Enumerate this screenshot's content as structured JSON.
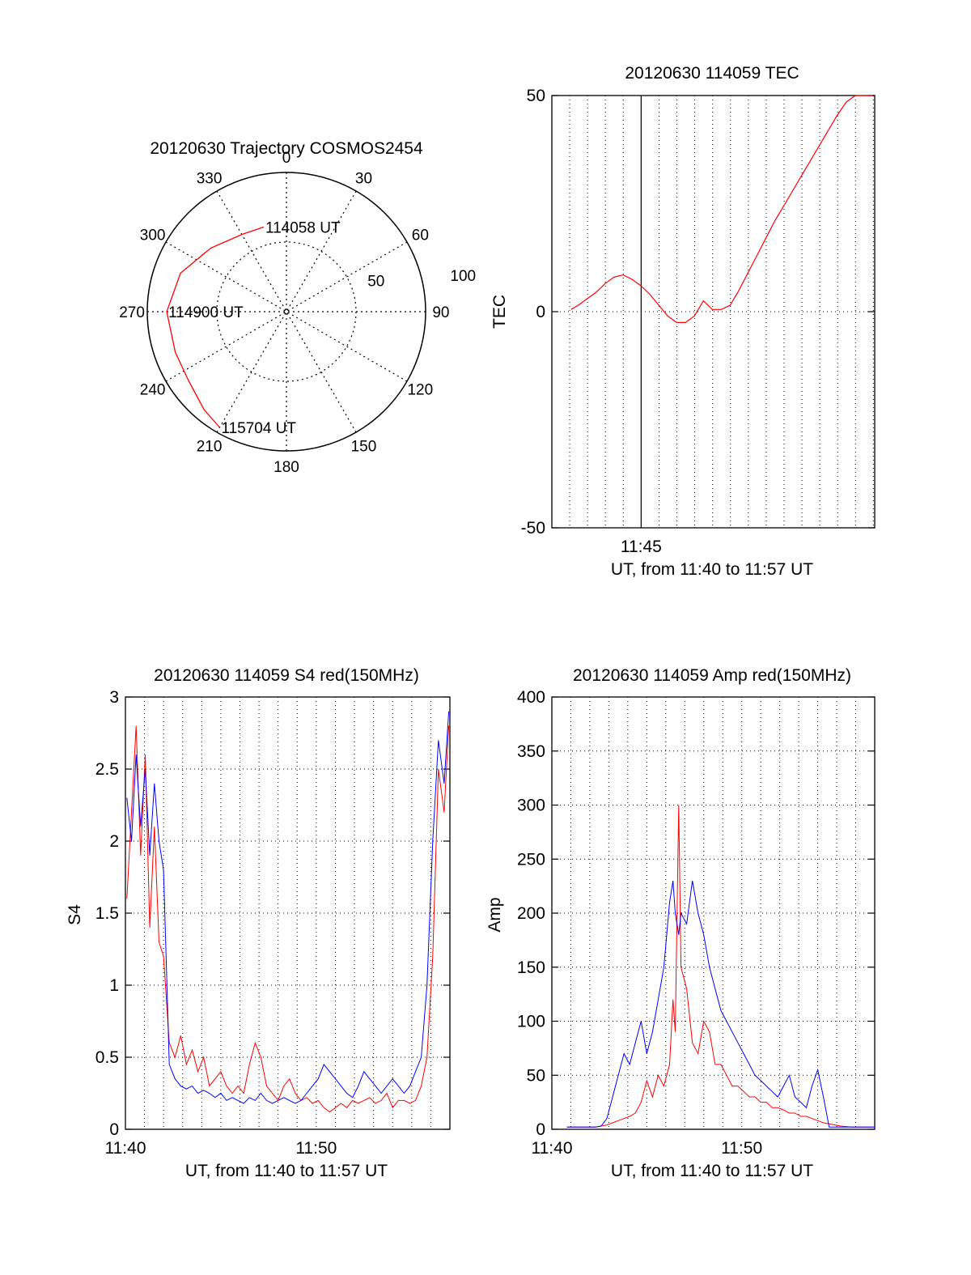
{
  "colors": {
    "red": "#ff0000",
    "blue": "#0000ff",
    "axis": "#000000",
    "background": "#ffffff"
  },
  "chart_data": [
    {
      "id": "trajectory",
      "type": "polar",
      "title": "20120630 Trajectory COSMOS2454",
      "angle_labels": [
        "0",
        "30",
        "60",
        "90",
        "120",
        "150",
        "180",
        "210",
        "240",
        "270",
        "300",
        "330"
      ],
      "radius_labels": [
        "50",
        "100"
      ],
      "radial_max": 100,
      "grid": true,
      "track": {
        "color": "red",
        "points": [
          {
            "az": 345,
            "zen": 63
          },
          {
            "az": 330,
            "zen": 64
          },
          {
            "az": 310,
            "zen": 71
          },
          {
            "az": 290,
            "zen": 81
          },
          {
            "az": 270,
            "zen": 86
          },
          {
            "az": 250,
            "zen": 85
          },
          {
            "az": 235,
            "zen": 86
          },
          {
            "az": 220,
            "zen": 92
          },
          {
            "az": 210,
            "zen": 96
          }
        ]
      },
      "annotations": [
        {
          "text": "114058 UT",
          "az": 345,
          "zen": 63
        },
        {
          "text": "114900 UT",
          "az": 270,
          "zen": 86
        },
        {
          "text": "115704 UT",
          "az": 210,
          "zen": 96
        }
      ]
    },
    {
      "id": "tec",
      "type": "line",
      "title": "20120630 114059 TEC",
      "xlabel": "UT, from 11:40 to 11:57 UT",
      "ylabel": "TEC",
      "xlim": [
        11.6667,
        11.9679
      ],
      "ylim": [
        -50,
        50
      ],
      "yticks": [
        "50",
        "0",
        "-50"
      ],
      "xticks": [
        {
          "value": 11.75,
          "label": "11:45"
        }
      ],
      "grid": true,
      "series": [
        {
          "color": "red",
          "x": [
            11.6847,
            11.6914,
            11.6997,
            11.7081,
            11.7164,
            11.7247,
            11.7331,
            11.7414,
            11.7497,
            11.7581,
            11.7664,
            11.7747,
            11.7831,
            11.7914,
            11.7997,
            11.8081,
            11.8164,
            11.8247,
            11.8331,
            11.8414,
            11.8497,
            11.8581,
            11.8664,
            11.8747,
            11.8831,
            11.8914,
            11.8997,
            11.9081,
            11.9164,
            11.9247,
            11.9331,
            11.9414,
            11.9497,
            11.9581,
            11.9664
          ],
          "y": [
            0.5,
            1.5,
            3,
            4.5,
            6.5,
            8,
            8.5,
            7.5,
            6,
            4,
            1.5,
            -1,
            -2.5,
            -2.5,
            -1,
            2.5,
            0.5,
            0.5,
            1.5,
            5,
            9,
            13,
            17,
            21,
            24.5,
            28,
            31.5,
            35,
            38.5,
            42,
            45.5,
            48.5,
            50.5,
            52,
            52.5
          ]
        }
      ]
    },
    {
      "id": "s4",
      "type": "line",
      "title": "20120630 114059 S4 red(150MHz)",
      "xlabel": "UT, from 11:40 to 11:57 UT",
      "ylabel": "S4",
      "xlim": [
        11.6667,
        11.95
      ],
      "ylim": [
        0,
        3
      ],
      "yticks": [
        "0",
        "0.5",
        "1",
        "1.5",
        "2",
        "2.5",
        "3"
      ],
      "xticks": [
        {
          "value": 11.6667,
          "label": "11:40"
        },
        {
          "value": 11.8333,
          "label": "11:50"
        }
      ],
      "grid": true,
      "series": [
        {
          "color": "red",
          "x": [
            11.668,
            11.672,
            11.676,
            11.68,
            11.684,
            11.688,
            11.692,
            11.696,
            11.7,
            11.705,
            11.71,
            11.715,
            11.72,
            11.725,
            11.73,
            11.735,
            11.74,
            11.745,
            11.75,
            11.755,
            11.76,
            11.765,
            11.77,
            11.775,
            11.78,
            11.785,
            11.79,
            11.795,
            11.8,
            11.805,
            11.81,
            11.815,
            11.82,
            11.825,
            11.83,
            11.835,
            11.84,
            11.845,
            11.85,
            11.855,
            11.86,
            11.865,
            11.87,
            11.875,
            11.88,
            11.885,
            11.89,
            11.895,
            11.9,
            11.905,
            11.91,
            11.915,
            11.92,
            11.925,
            11.93,
            11.935,
            11.94,
            11.945,
            11.949
          ],
          "y": [
            1.6,
            2.2,
            2.8,
            1.9,
            2.6,
            1.4,
            2.1,
            1.3,
            1.2,
            0.6,
            0.5,
            0.65,
            0.45,
            0.55,
            0.4,
            0.5,
            0.3,
            0.35,
            0.4,
            0.3,
            0.25,
            0.3,
            0.25,
            0.45,
            0.6,
            0.5,
            0.3,
            0.25,
            0.2,
            0.3,
            0.35,
            0.25,
            0.2,
            0.22,
            0.18,
            0.2,
            0.15,
            0.12,
            0.15,
            0.18,
            0.15,
            0.2,
            0.18,
            0.2,
            0.22,
            0.18,
            0.2,
            0.25,
            0.15,
            0.2,
            0.2,
            0.18,
            0.2,
            0.3,
            0.5,
            1.2,
            2.5,
            2.2,
            2.8
          ]
        },
        {
          "color": "blue",
          "x": [
            11.668,
            11.672,
            11.676,
            11.68,
            11.684,
            11.688,
            11.692,
            11.696,
            11.7,
            11.705,
            11.71,
            11.715,
            11.72,
            11.725,
            11.73,
            11.735,
            11.74,
            11.745,
            11.75,
            11.755,
            11.76,
            11.765,
            11.77,
            11.775,
            11.78,
            11.785,
            11.79,
            11.795,
            11.8,
            11.805,
            11.81,
            11.815,
            11.82,
            11.825,
            11.83,
            11.835,
            11.84,
            11.845,
            11.85,
            11.855,
            11.86,
            11.865,
            11.87,
            11.875,
            11.88,
            11.885,
            11.89,
            11.895,
            11.9,
            11.905,
            11.91,
            11.915,
            11.92,
            11.925,
            11.93,
            11.935,
            11.94,
            11.945,
            11.949
          ],
          "y": [
            2.3,
            2.0,
            2.6,
            2.1,
            2.5,
            1.9,
            2.4,
            2.0,
            1.8,
            0.45,
            0.35,
            0.3,
            0.28,
            0.3,
            0.25,
            0.27,
            0.25,
            0.22,
            0.25,
            0.2,
            0.22,
            0.2,
            0.18,
            0.22,
            0.2,
            0.25,
            0.2,
            0.18,
            0.2,
            0.22,
            0.2,
            0.18,
            0.2,
            0.25,
            0.3,
            0.35,
            0.45,
            0.4,
            0.35,
            0.3,
            0.25,
            0.22,
            0.3,
            0.4,
            0.35,
            0.3,
            0.25,
            0.3,
            0.35,
            0.3,
            0.25,
            0.3,
            0.4,
            0.5,
            1.0,
            2.0,
            2.7,
            2.4,
            2.9
          ]
        }
      ]
    },
    {
      "id": "amp",
      "type": "line",
      "title": "20120630 114059 Amp red(150MHz)",
      "xlabel": "UT, from 11:40 to 11:57 UT",
      "ylabel": "Amp",
      "xlim": [
        11.6667,
        11.95
      ],
      "ylim": [
        0,
        400
      ],
      "yticks": [
        "0",
        "50",
        "100",
        "150",
        "200",
        "250",
        "300",
        "350",
        "400"
      ],
      "xticks": [
        {
          "value": 11.6667,
          "label": "11:40"
        },
        {
          "value": 11.8333,
          "label": "11:50"
        }
      ],
      "grid": true,
      "series": [
        {
          "color": "red",
          "x": [
            11.68,
            11.69,
            11.7,
            11.705,
            11.71,
            11.715,
            11.72,
            11.725,
            11.73,
            11.735,
            11.74,
            11.745,
            11.75,
            11.755,
            11.76,
            11.765,
            11.77,
            11.773,
            11.775,
            11.778,
            11.78,
            11.785,
            11.79,
            11.795,
            11.8,
            11.805,
            11.81,
            11.815,
            11.82,
            11.825,
            11.83,
            11.835,
            11.84,
            11.845,
            11.85,
            11.855,
            11.86,
            11.865,
            11.87,
            11.875,
            11.88,
            11.885,
            11.89,
            11.895,
            11.9,
            11.905,
            11.91,
            11.92,
            11.93,
            11.94,
            11.95
          ],
          "y": [
            2,
            2,
            2,
            2,
            3,
            4,
            6,
            8,
            10,
            12,
            15,
            25,
            45,
            30,
            50,
            40,
            60,
            120,
            90,
            300,
            150,
            130,
            80,
            70,
            100,
            90,
            60,
            60,
            50,
            40,
            40,
            35,
            30,
            30,
            25,
            25,
            20,
            20,
            18,
            15,
            15,
            12,
            12,
            10,
            8,
            6,
            5,
            3,
            2,
            2,
            2
          ]
        },
        {
          "color": "blue",
          "x": [
            11.68,
            11.69,
            11.7,
            11.705,
            11.71,
            11.715,
            11.72,
            11.725,
            11.73,
            11.735,
            11.74,
            11.745,
            11.75,
            11.755,
            11.76,
            11.765,
            11.77,
            11.773,
            11.775,
            11.778,
            11.78,
            11.785,
            11.79,
            11.795,
            11.8,
            11.805,
            11.81,
            11.815,
            11.82,
            11.825,
            11.83,
            11.835,
            11.84,
            11.845,
            11.85,
            11.855,
            11.86,
            11.865,
            11.87,
            11.875,
            11.88,
            11.885,
            11.89,
            11.895,
            11.9,
            11.905,
            11.91,
            11.92,
            11.93,
            11.94,
            11.95
          ],
          "y": [
            2,
            2,
            2,
            2,
            3,
            10,
            30,
            50,
            70,
            60,
            80,
            100,
            70,
            90,
            120,
            150,
            210,
            230,
            200,
            180,
            200,
            190,
            230,
            200,
            180,
            150,
            130,
            110,
            100,
            90,
            80,
            70,
            60,
            50,
            45,
            40,
            35,
            30,
            40,
            50,
            30,
            25,
            20,
            40,
            55,
            30,
            2,
            2,
            2,
            2,
            2
          ]
        }
      ]
    }
  ]
}
